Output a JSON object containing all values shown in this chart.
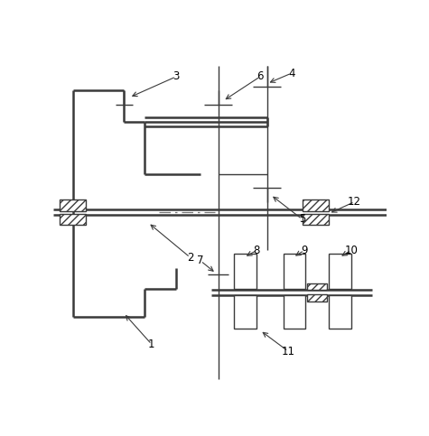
{
  "bg_color": "#ffffff",
  "line_color": "#3a3a3a",
  "fig_width": 4.75,
  "fig_height": 4.83,
  "dpi": 100
}
